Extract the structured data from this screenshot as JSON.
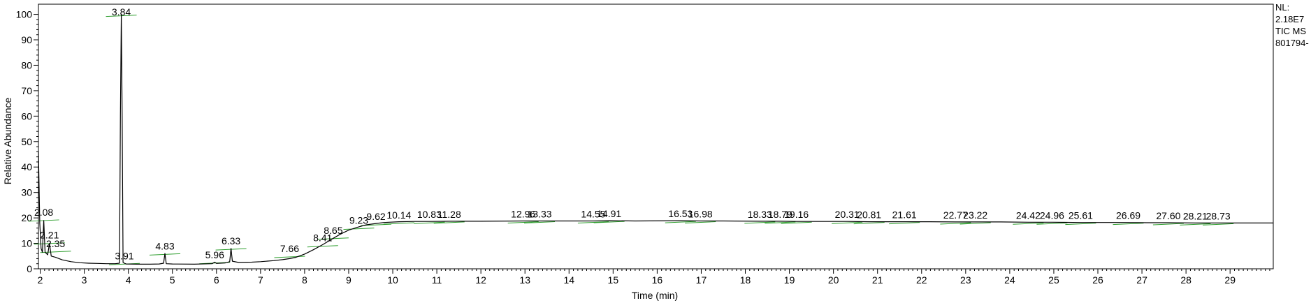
{
  "chart_data": {
    "type": "line",
    "title": "",
    "xlabel": "Time (min)",
    "ylabel": "Relative Abundance",
    "xlim": [
      1.96,
      29.98
    ],
    "ylim": [
      0,
      104
    ],
    "x_ticks": [
      2,
      3,
      4,
      5,
      6,
      7,
      8,
      9,
      10,
      11,
      12,
      13,
      14,
      15,
      16,
      17,
      18,
      19,
      20,
      21,
      22,
      23,
      24,
      25,
      26,
      27,
      28,
      29
    ],
    "y_ticks": [
      0,
      10,
      20,
      30,
      40,
      50,
      60,
      70,
      80,
      90,
      100
    ],
    "info_lines": [
      "NL:",
      "2.18E7",
      "TIC  MS",
      "801794-"
    ],
    "grid": false,
    "line_color": "#000000",
    "integration_color": "#2e9e2e",
    "series": [
      {
        "x": [
          1.96,
          1.99,
          2.02,
          2.05,
          2.08,
          2.11,
          2.14,
          2.17,
          2.21,
          2.25,
          2.35,
          2.5,
          2.7,
          2.9,
          3.1,
          3.3,
          3.5,
          3.7,
          3.8,
          3.82,
          3.84,
          3.86,
          3.88,
          3.91,
          3.95,
          4.2,
          4.5,
          4.7,
          4.8,
          4.83,
          4.86,
          5.0,
          5.5,
          5.9,
          5.96,
          6.0,
          6.2,
          6.3,
          6.33,
          6.36,
          6.5,
          6.8,
          7.0,
          7.3,
          7.5,
          7.66,
          7.8,
          8.0,
          8.2,
          8.41,
          8.65,
          8.8,
          9.0,
          9.23,
          9.4,
          9.62,
          9.8,
          10.14,
          10.5,
          10.83,
          11.28,
          12.0,
          12.96,
          13.33,
          14.0,
          14.55,
          14.91,
          15.5,
          16.53,
          16.98,
          17.5,
          18.33,
          18.79,
          19.16,
          19.7,
          20.31,
          20.81,
          21.61,
          22.2,
          22.77,
          23.22,
          23.8,
          24.42,
          24.96,
          25.61,
          26.1,
          26.69,
          27.1,
          27.6,
          28.21,
          28.73,
          29.3,
          29.98
        ],
        "y": [
          46,
          18,
          8,
          6.5,
          19,
          6.5,
          6,
          5.5,
          10,
          5,
          4.5,
          3.5,
          2.8,
          2.4,
          2.2,
          2.1,
          2.0,
          2.0,
          2.2,
          60,
          100,
          60,
          2.5,
          2.2,
          1.9,
          1.8,
          1.8,
          1.9,
          2.2,
          6,
          2.0,
          1.9,
          1.8,
          2.0,
          2.6,
          2.1,
          2.3,
          2.8,
          8,
          3.0,
          2.5,
          2.6,
          2.8,
          3.2,
          3.6,
          4.0,
          4.5,
          5.8,
          7.5,
          9.5,
          12,
          13.5,
          15.2,
          16.5,
          17.3,
          17.8,
          18.2,
          18.5,
          18.6,
          18.6,
          18.7,
          18.7,
          18.8,
          18.8,
          18.8,
          18.8,
          18.9,
          18.8,
          18.9,
          18.8,
          18.8,
          18.7,
          18.7,
          18.6,
          18.6,
          18.6,
          18.5,
          18.5,
          18.5,
          18.4,
          18.4,
          18.4,
          18.3,
          18.3,
          18.2,
          18.2,
          18.2,
          18.1,
          18.1,
          18.0,
          18.0,
          18.0,
          18.0
        ]
      }
    ],
    "peaks": [
      {
        "label": "2.08",
        "x": 2.08,
        "y": 19.5
      },
      {
        "label": "2.21",
        "x": 2.21,
        "y": 10.5
      },
      {
        "label": "2.35",
        "x": 2.35,
        "y": 7.2
      },
      {
        "label": "3.84",
        "x": 3.84,
        "y": 100
      },
      {
        "label": "3.91",
        "x": 3.91,
        "y": 2.4
      },
      {
        "label": "4.83",
        "x": 4.83,
        "y": 6.2
      },
      {
        "label": "5.96",
        "x": 5.96,
        "y": 2.8
      },
      {
        "label": "6.33",
        "x": 6.33,
        "y": 8.2
      },
      {
        "label": "7.66",
        "x": 7.66,
        "y": 5.2
      },
      {
        "label": "8.41",
        "x": 8.41,
        "y": 9.4
      },
      {
        "label": "8.65",
        "x": 8.65,
        "y": 12.4
      },
      {
        "label": "9.23",
        "x": 9.23,
        "y": 16.3
      },
      {
        "label": "9.62",
        "x": 9.62,
        "y": 17.8
      },
      {
        "label": "10.14",
        "x": 10.14,
        "y": 18.4
      },
      {
        "label": "10.83",
        "x": 10.83,
        "y": 18.6
      },
      {
        "label": "11.28",
        "x": 11.28,
        "y": 18.7
      },
      {
        "label": "12.96",
        "x": 12.96,
        "y": 18.8
      },
      {
        "label": "13.33",
        "x": 13.33,
        "y": 18.8
      },
      {
        "label": "14.55",
        "x": 14.55,
        "y": 18.8
      },
      {
        "label": "14.91",
        "x": 14.91,
        "y": 18.9
      },
      {
        "label": "16.53",
        "x": 16.53,
        "y": 18.9
      },
      {
        "label": "16.98",
        "x": 16.98,
        "y": 18.8
      },
      {
        "label": "18.33",
        "x": 18.33,
        "y": 18.7
      },
      {
        "label": "18.79",
        "x": 18.79,
        "y": 18.7
      },
      {
        "label": "19.16",
        "x": 19.16,
        "y": 18.6
      },
      {
        "label": "20.31",
        "x": 20.31,
        "y": 18.6
      },
      {
        "label": "20.81",
        "x": 20.81,
        "y": 18.5
      },
      {
        "label": "21.61",
        "x": 21.61,
        "y": 18.5
      },
      {
        "label": "22.77",
        "x": 22.77,
        "y": 18.4
      },
      {
        "label": "23.22",
        "x": 23.22,
        "y": 18.4
      },
      {
        "label": "24.42",
        "x": 24.42,
        "y": 18.3
      },
      {
        "label": "24.96",
        "x": 24.96,
        "y": 18.3
      },
      {
        "label": "25.61",
        "x": 25.61,
        "y": 18.2
      },
      {
        "label": "26.69",
        "x": 26.69,
        "y": 18.2
      },
      {
        "label": "27.60",
        "x": 27.6,
        "y": 18.1
      },
      {
        "label": "28.21",
        "x": 28.21,
        "y": 18.0
      },
      {
        "label": "28.73",
        "x": 28.73,
        "y": 18.0
      }
    ]
  }
}
